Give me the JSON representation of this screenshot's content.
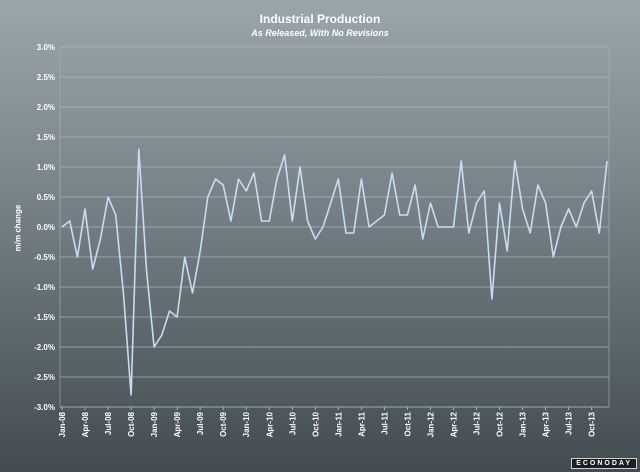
{
  "colors": {
    "line": "#c8dcf2",
    "grid": "#a8b4b9",
    "text": "#ffffff"
  },
  "chart_data": {
    "type": "line",
    "title": "Industrial Production",
    "subtitle": "As Released, With No Revisions",
    "ylabel": "m/m change",
    "xlabel": "",
    "ylim": [
      -3.0,
      3.0
    ],
    "yticks": [
      3.0,
      2.5,
      2.0,
      1.5,
      1.0,
      0.5,
      0.0,
      -0.5,
      -1.0,
      -1.5,
      -2.0,
      -2.5,
      -3.0
    ],
    "ytick_labels": [
      "3.0%",
      "2.5%",
      "2.0%",
      "1.5%",
      "1.0%",
      "0.5%",
      "0.0%",
      "-0.5%",
      "-1.0%",
      "-1.5%",
      "-2.0%",
      "-2.5%",
      "-3.0%"
    ],
    "grid": true,
    "legend": "none",
    "x_labels": [
      "Jan-08",
      "Apr-08",
      "Jul-08",
      "Oct-08",
      "Jan-09",
      "Apr-09",
      "Jul-09",
      "Oct-09",
      "Jan-10",
      "Apr-10",
      "Jul-10",
      "Oct-10",
      "Jan-11",
      "Apr-11",
      "Jul-11",
      "Oct-11",
      "Jan-12",
      "Apr-12",
      "Jul-12",
      "Oct-12",
      "Jan-13",
      "Apr-13",
      "Jul-13",
      "Oct-13"
    ],
    "series": [
      {
        "values": [
          0.0,
          0.1,
          -0.5,
          0.3,
          -0.7,
          -0.2,
          0.5,
          0.2,
          -1.1,
          -2.8,
          1.3,
          -0.7,
          -2.0,
          -1.8,
          -1.4,
          -1.5,
          -0.5,
          -1.1,
          -0.4,
          0.5,
          0.8,
          0.7,
          0.1,
          0.8,
          0.6,
          0.9,
          0.1,
          0.1,
          0.8,
          1.2,
          0.1,
          1.0,
          0.1,
          -0.2,
          0.0,
          0.4,
          0.8,
          -0.1,
          -0.1,
          0.8,
          0.0,
          0.1,
          0.2,
          0.9,
          0.2,
          0.2,
          0.7,
          -0.2,
          0.4,
          0.0,
          0.0,
          0.0,
          1.1,
          -0.1,
          0.4,
          0.6,
          -1.2,
          0.4,
          -0.4,
          1.1,
          0.3,
          -0.1,
          0.7,
          0.4,
          -0.5,
          0.0,
          0.3,
          0.0,
          0.4,
          0.6,
          -0.1,
          1.1
        ]
      }
    ]
  },
  "watermark": "ECONODAY"
}
